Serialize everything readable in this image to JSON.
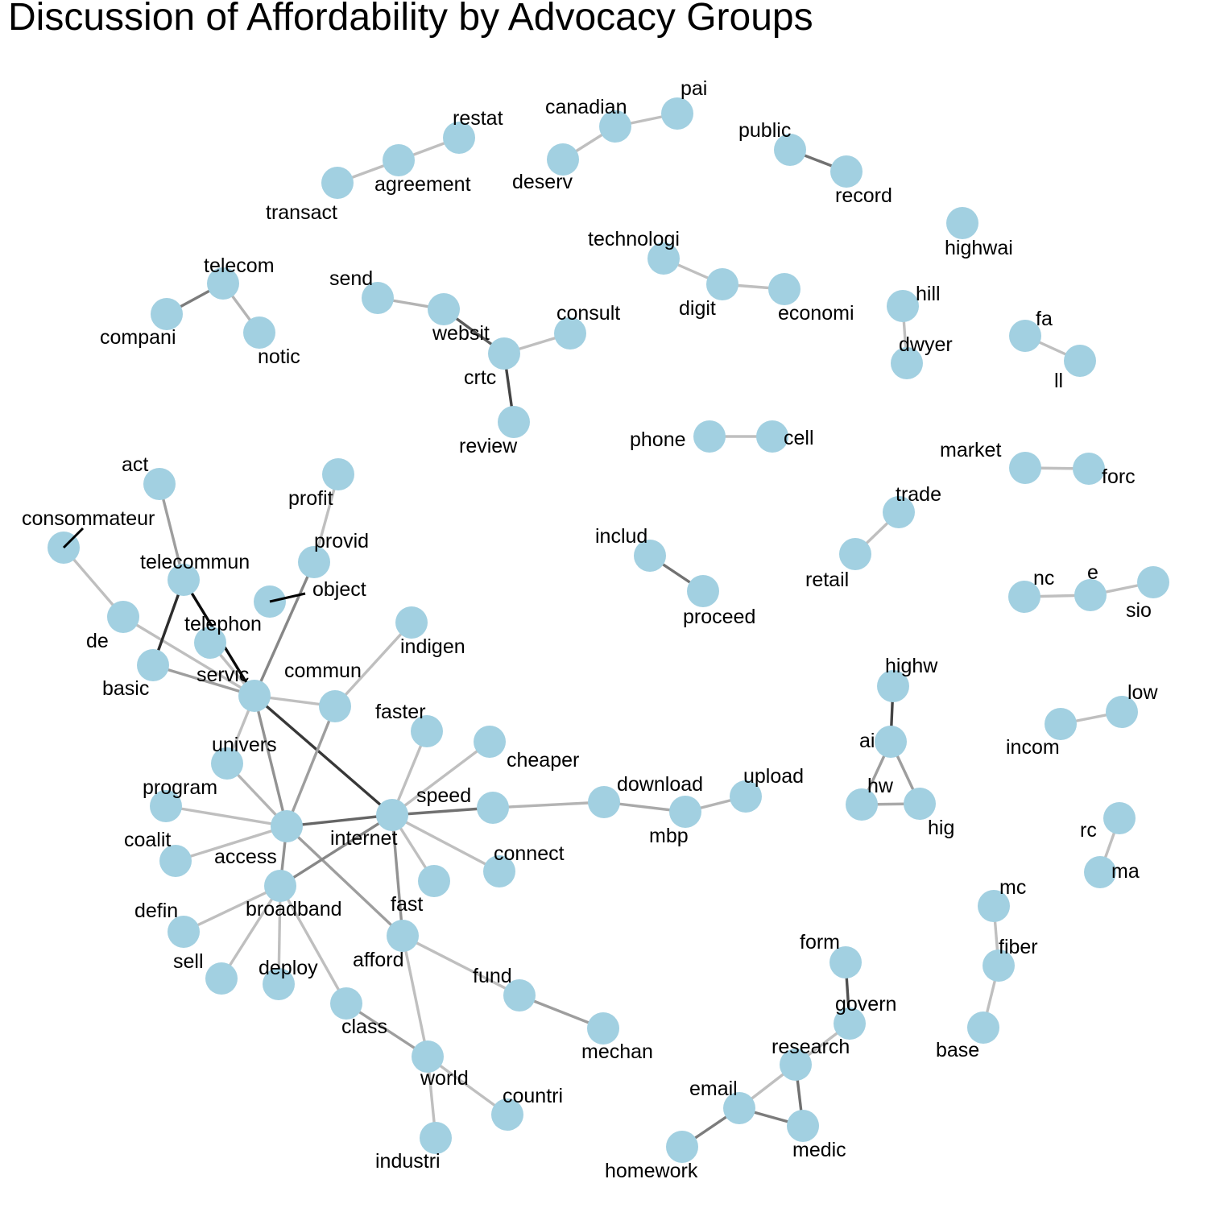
{
  "title": "Discussion of Affordability by Advocacy Groups",
  "colors": {
    "node": "#a2d0e1",
    "label": "#000000"
  },
  "nodes": [
    {
      "id": "transact",
      "label": "transact"
    },
    {
      "id": "agreement",
      "label": "agreement"
    },
    {
      "id": "restat",
      "label": "restat"
    },
    {
      "id": "deserv",
      "label": "deserv"
    },
    {
      "id": "canadian",
      "label": "canadian"
    },
    {
      "id": "pai",
      "label": "pai"
    },
    {
      "id": "public",
      "label": "public"
    },
    {
      "id": "record",
      "label": "record"
    },
    {
      "id": "highwai",
      "label": "highwai"
    },
    {
      "id": "compani",
      "label": "compani"
    },
    {
      "id": "telecom",
      "label": "telecom"
    },
    {
      "id": "notic",
      "label": "notic"
    },
    {
      "id": "send",
      "label": "send"
    },
    {
      "id": "websit",
      "label": "websit"
    },
    {
      "id": "crtc",
      "label": "crtc"
    },
    {
      "id": "consult",
      "label": "consult"
    },
    {
      "id": "review",
      "label": "review"
    },
    {
      "id": "technologi",
      "label": "technologi"
    },
    {
      "id": "digit",
      "label": "digit"
    },
    {
      "id": "economi",
      "label": "economi"
    },
    {
      "id": "hill",
      "label": "hill"
    },
    {
      "id": "dwyer",
      "label": "dwyer"
    },
    {
      "id": "fa",
      "label": "fa"
    },
    {
      "id": "ll",
      "label": "ll"
    },
    {
      "id": "phone",
      "label": "phone"
    },
    {
      "id": "cell",
      "label": "cell"
    },
    {
      "id": "market",
      "label": "market"
    },
    {
      "id": "forc",
      "label": "forc"
    },
    {
      "id": "trade",
      "label": "trade"
    },
    {
      "id": "retail",
      "label": "retail"
    },
    {
      "id": "includ",
      "label": "includ"
    },
    {
      "id": "proceed",
      "label": "proceed"
    },
    {
      "id": "nc",
      "label": "nc"
    },
    {
      "id": "e",
      "label": "e"
    },
    {
      "id": "sio",
      "label": "sio"
    },
    {
      "id": "act",
      "label": "act"
    },
    {
      "id": "consommateur",
      "label": "consommateur"
    },
    {
      "id": "profit",
      "label": "profit"
    },
    {
      "id": "provid",
      "label": "provid"
    },
    {
      "id": "object",
      "label": "object"
    },
    {
      "id": "telecommun",
      "label": "telecommun"
    },
    {
      "id": "de",
      "label": "de"
    },
    {
      "id": "telephon",
      "label": "telephon"
    },
    {
      "id": "basic",
      "label": "basic"
    },
    {
      "id": "servic",
      "label": "servic"
    },
    {
      "id": "indigen",
      "label": "indigen"
    },
    {
      "id": "commun",
      "label": "commun"
    },
    {
      "id": "faster",
      "label": "faster"
    },
    {
      "id": "cheaper",
      "label": "cheaper"
    },
    {
      "id": "univers",
      "label": "univers"
    },
    {
      "id": "program",
      "label": "program"
    },
    {
      "id": "speed",
      "label": "speed"
    },
    {
      "id": "download",
      "label": "download"
    },
    {
      "id": "upload",
      "label": "upload"
    },
    {
      "id": "mbp",
      "label": "mbp"
    },
    {
      "id": "access",
      "label": "access"
    },
    {
      "id": "internet",
      "label": "internet"
    },
    {
      "id": "coalit",
      "label": "coalit"
    },
    {
      "id": "connect",
      "label": "connect"
    },
    {
      "id": "fast",
      "label": "fast"
    },
    {
      "id": "broadband",
      "label": "broadband"
    },
    {
      "id": "defin",
      "label": "defin"
    },
    {
      "id": "afford",
      "label": "afford"
    },
    {
      "id": "sell",
      "label": "sell"
    },
    {
      "id": "deploy",
      "label": "deploy"
    },
    {
      "id": "fund",
      "label": "fund"
    },
    {
      "id": "mechan",
      "label": "mechan"
    },
    {
      "id": "class",
      "label": "class"
    },
    {
      "id": "world",
      "label": "world"
    },
    {
      "id": "countri",
      "label": "countri"
    },
    {
      "id": "industri",
      "label": "industri"
    },
    {
      "id": "highw",
      "label": "highw"
    },
    {
      "id": "ai",
      "label": "ai"
    },
    {
      "id": "hw",
      "label": "hw"
    },
    {
      "id": "hig",
      "label": "hig"
    },
    {
      "id": "incom",
      "label": "incom"
    },
    {
      "id": "low",
      "label": "low"
    },
    {
      "id": "rc",
      "label": "rc"
    },
    {
      "id": "ma",
      "label": "ma"
    },
    {
      "id": "mc",
      "label": "mc"
    },
    {
      "id": "fiber",
      "label": "fiber"
    },
    {
      "id": "base",
      "label": "base"
    },
    {
      "id": "form",
      "label": "form"
    },
    {
      "id": "govern",
      "label": "govern"
    },
    {
      "id": "research",
      "label": "research"
    },
    {
      "id": "email",
      "label": "email"
    },
    {
      "id": "medic",
      "label": "medic"
    },
    {
      "id": "homework",
      "label": "homework"
    }
  ],
  "edges": [
    {
      "source": "transact",
      "target": "agreement",
      "weight": 0.15
    },
    {
      "source": "agreement",
      "target": "restat",
      "weight": 0.15
    },
    {
      "source": "deserv",
      "target": "canadian",
      "weight": 0.15
    },
    {
      "source": "canadian",
      "target": "pai",
      "weight": 0.15
    },
    {
      "source": "public",
      "target": "record",
      "weight": 0.5
    },
    {
      "source": "compani",
      "target": "telecom",
      "weight": 0.45
    },
    {
      "source": "telecom",
      "target": "notic",
      "weight": 0.2
    },
    {
      "source": "send",
      "target": "websit",
      "weight": 0.2
    },
    {
      "source": "websit",
      "target": "crtc",
      "weight": 0.6
    },
    {
      "source": "crtc",
      "target": "consult",
      "weight": 0.15
    },
    {
      "source": "crtc",
      "target": "review",
      "weight": 0.7
    },
    {
      "source": "technologi",
      "target": "digit",
      "weight": 0.15
    },
    {
      "source": "digit",
      "target": "economi",
      "weight": 0.15
    },
    {
      "source": "hill",
      "target": "dwyer",
      "weight": 0.15
    },
    {
      "source": "fa",
      "target": "ll",
      "weight": 0.15
    },
    {
      "source": "phone",
      "target": "cell",
      "weight": 0.15
    },
    {
      "source": "market",
      "target": "forc",
      "weight": 0.15
    },
    {
      "source": "trade",
      "target": "retail",
      "weight": 0.15
    },
    {
      "source": "includ",
      "target": "proceed",
      "weight": 0.5
    },
    {
      "source": "nc",
      "target": "e",
      "weight": 0.15
    },
    {
      "source": "e",
      "target": "sio",
      "weight": 0.15
    },
    {
      "source": "consommateur",
      "target": "de",
      "weight": 0.15
    },
    {
      "source": "de",
      "target": "servic",
      "weight": 0.15
    },
    {
      "source": "act",
      "target": "telecommun",
      "weight": 0.3
    },
    {
      "source": "telecommun",
      "target": "basic",
      "weight": 0.8
    },
    {
      "source": "telecommun",
      "target": "servic",
      "weight": 0.95
    },
    {
      "source": "profit",
      "target": "provid",
      "weight": 0.15
    },
    {
      "source": "provid",
      "target": "servic",
      "weight": 0.4
    },
    {
      "source": "telephon",
      "target": "servic",
      "weight": 0.15
    },
    {
      "source": "basic",
      "target": "servic",
      "weight": 0.3
    },
    {
      "source": "servic",
      "target": "commun",
      "weight": 0.15
    },
    {
      "source": "servic",
      "target": "univers",
      "weight": 0.15
    },
    {
      "source": "servic",
      "target": "internet",
      "weight": 0.75
    },
    {
      "source": "servic",
      "target": "access",
      "weight": 0.35
    },
    {
      "source": "indigen",
      "target": "commun",
      "weight": 0.15
    },
    {
      "source": "commun",
      "target": "access",
      "weight": 0.3
    },
    {
      "source": "univers",
      "target": "access",
      "weight": 0.2
    },
    {
      "source": "program",
      "target": "access",
      "weight": 0.15
    },
    {
      "source": "coalit",
      "target": "access",
      "weight": 0.15
    },
    {
      "source": "access",
      "target": "internet",
      "weight": 0.55
    },
    {
      "source": "access",
      "target": "broadband",
      "weight": 0.35
    },
    {
      "source": "access",
      "target": "afford",
      "weight": 0.3
    },
    {
      "source": "faster",
      "target": "internet",
      "weight": 0.15
    },
    {
      "source": "cheaper",
      "target": "internet",
      "weight": 0.15
    },
    {
      "source": "internet",
      "target": "speed",
      "weight": 0.5
    },
    {
      "source": "internet",
      "target": "connect",
      "weight": 0.15
    },
    {
      "source": "internet",
      "target": "fast",
      "weight": 0.15
    },
    {
      "source": "internet",
      "target": "broadband",
      "weight": 0.4
    },
    {
      "source": "internet",
      "target": "afford",
      "weight": 0.35
    },
    {
      "source": "speed",
      "target": "download",
      "weight": 0.2
    },
    {
      "source": "download",
      "target": "mbp",
      "weight": 0.25
    },
    {
      "source": "mbp",
      "target": "upload",
      "weight": 0.2
    },
    {
      "source": "broadband",
      "target": "defin",
      "weight": 0.15
    },
    {
      "source": "broadband",
      "target": "sell",
      "weight": 0.15
    },
    {
      "source": "broadband",
      "target": "deploy",
      "weight": 0.15
    },
    {
      "source": "broadband",
      "target": "class",
      "weight": 0.15
    },
    {
      "source": "afford",
      "target": "fund",
      "weight": 0.15
    },
    {
      "source": "afford",
      "target": "world",
      "weight": 0.15
    },
    {
      "source": "fund",
      "target": "mechan",
      "weight": 0.3
    },
    {
      "source": "class",
      "target": "world",
      "weight": 0.3
    },
    {
      "source": "world",
      "target": "countri",
      "weight": 0.15
    },
    {
      "source": "world",
      "target": "industri",
      "weight": 0.15
    },
    {
      "source": "highw",
      "target": "ai",
      "weight": 0.7
    },
    {
      "source": "ai",
      "target": "hw",
      "weight": 0.3
    },
    {
      "source": "ai",
      "target": "hig",
      "weight": 0.3
    },
    {
      "source": "hw",
      "target": "hig",
      "weight": 0.25
    },
    {
      "source": "incom",
      "target": "low",
      "weight": 0.15
    },
    {
      "source": "rc",
      "target": "ma",
      "weight": 0.15
    },
    {
      "source": "mc",
      "target": "fiber",
      "weight": 0.15
    },
    {
      "source": "fiber",
      "target": "base",
      "weight": 0.15
    },
    {
      "source": "form",
      "target": "govern",
      "weight": 0.65
    },
    {
      "source": "govern",
      "target": "research",
      "weight": 0.15
    },
    {
      "source": "research",
      "target": "email",
      "weight": 0.15
    },
    {
      "source": "research",
      "target": "medic",
      "weight": 0.5
    },
    {
      "source": "email",
      "target": "medic",
      "weight": 0.45
    },
    {
      "source": "email",
      "target": "homework",
      "weight": 0.45
    }
  ]
}
